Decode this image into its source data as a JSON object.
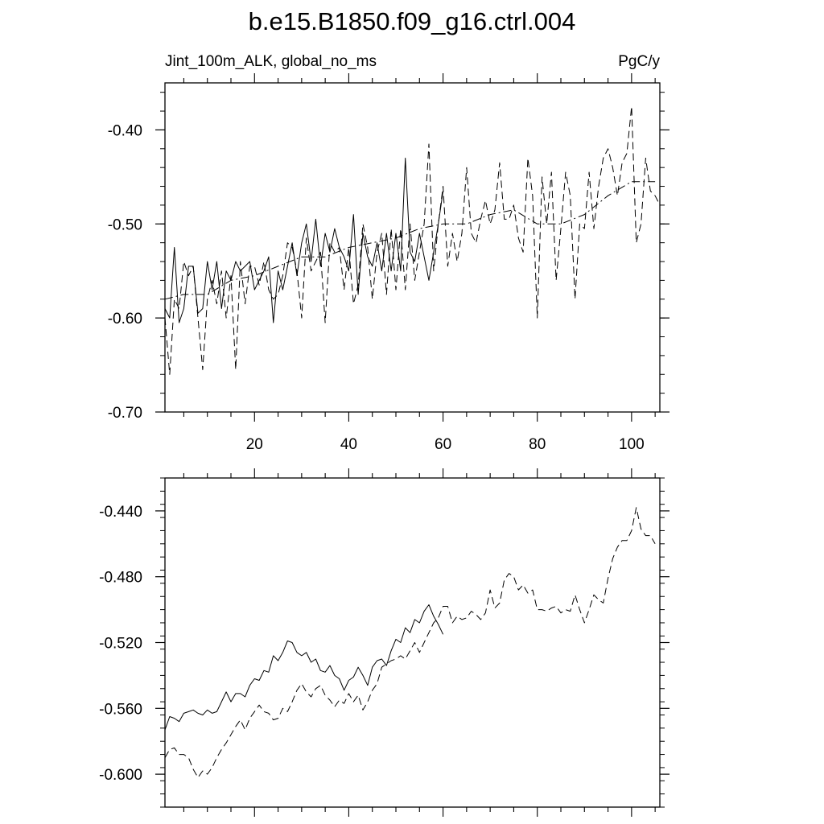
{
  "title": "b.e15.B1850.f09_g16.ctrl.004",
  "chart_data": [
    {
      "type": "line",
      "left_string": "Jint_100m_ALK, global_no_ms",
      "right_string": "PgC/y",
      "xlim": [
        1,
        106
      ],
      "ylim": [
        -0.7,
        -0.35
      ],
      "x_ticks": [
        20,
        40,
        60,
        80,
        100
      ],
      "x_tick_labels": [
        "20",
        "40",
        "60",
        "80",
        "100"
      ],
      "y_ticks": [
        -0.4,
        -0.5,
        -0.6,
        -0.7
      ],
      "y_tick_labels": [
        "-0.40",
        "-0.50",
        "-0.60",
        "-0.70"
      ],
      "grid": false,
      "series": [
        {
          "style": "solid",
          "x": [
            1,
            2,
            3,
            4,
            5,
            6,
            7,
            8,
            9,
            10,
            11,
            12,
            13,
            14,
            15,
            16,
            17,
            18,
            19,
            20,
            21,
            22,
            23,
            24,
            25,
            26,
            27,
            28,
            29,
            30,
            31,
            32,
            33,
            34,
            35,
            36,
            37,
            38,
            39,
            40,
            41,
            42,
            43,
            44,
            45,
            46,
            47,
            48,
            49,
            50,
            51,
            52,
            53,
            54,
            55,
            56,
            57,
            58,
            59,
            60
          ],
          "y": [
            -0.59,
            -0.6,
            -0.525,
            -0.605,
            -0.59,
            -0.545,
            -0.545,
            -0.595,
            -0.59,
            -0.54,
            -0.57,
            -0.54,
            -0.59,
            -0.55,
            -0.56,
            -0.54,
            -0.55,
            -0.545,
            -0.54,
            -0.57,
            -0.56,
            -0.55,
            -0.535,
            -0.605,
            -0.55,
            -0.57,
            -0.545,
            -0.52,
            -0.555,
            -0.52,
            -0.5,
            -0.54,
            -0.495,
            -0.545,
            -0.51,
            -0.53,
            -0.505,
            -0.525,
            -0.535,
            -0.55,
            -0.49,
            -0.575,
            -0.51,
            -0.535,
            -0.545,
            -0.52,
            -0.55,
            -0.51,
            -0.55,
            -0.51,
            -0.55,
            -0.43,
            -0.53,
            -0.54,
            -0.51,
            -0.535,
            -0.56,
            -0.53,
            -0.5,
            -0.465
          ]
        },
        {
          "style": "dashed",
          "x": [
            1,
            2,
            3,
            4,
            5,
            6,
            7,
            8,
            9,
            10,
            11,
            12,
            13,
            14,
            15,
            16,
            17,
            18,
            19,
            20,
            21,
            22,
            23,
            24,
            25,
            26,
            27,
            28,
            29,
            30,
            31,
            32,
            33,
            34,
            35,
            36,
            37,
            38,
            39,
            40,
            41,
            42,
            43,
            44,
            45,
            46,
            47,
            48,
            49,
            50,
            51,
            52,
            53,
            54,
            55,
            56,
            57,
            58,
            59,
            60,
            61,
            62,
            63,
            64,
            65,
            66,
            67,
            68,
            69,
            70,
            71,
            72,
            73,
            74,
            75,
            76,
            77,
            78,
            79,
            80,
            81,
            82,
            83,
            84,
            85,
            86,
            87,
            88,
            89,
            90,
            91,
            92,
            93,
            94,
            95,
            96,
            97,
            98,
            99,
            100,
            101,
            102,
            103,
            104,
            105,
            106
          ],
          "y": [
            -0.6,
            -0.66,
            -0.58,
            -0.59,
            -0.54,
            -0.555,
            -0.545,
            -0.6,
            -0.655,
            -0.58,
            -0.56,
            -0.585,
            -0.55,
            -0.6,
            -0.555,
            -0.655,
            -0.54,
            -0.585,
            -0.545,
            -0.545,
            -0.565,
            -0.54,
            -0.57,
            -0.58,
            -0.575,
            -0.555,
            -0.52,
            -0.525,
            -0.55,
            -0.6,
            -0.515,
            -0.55,
            -0.54,
            -0.53,
            -0.605,
            -0.52,
            -0.53,
            -0.525,
            -0.57,
            -0.525,
            -0.585,
            -0.565,
            -0.5,
            -0.525,
            -0.58,
            -0.53,
            -0.51,
            -0.575,
            -0.505,
            -0.57,
            -0.505,
            -0.57,
            -0.5,
            -0.56,
            -0.53,
            -0.5,
            -0.415,
            -0.55,
            -0.5,
            -0.46,
            -0.545,
            -0.51,
            -0.54,
            -0.51,
            -0.44,
            -0.51,
            -0.52,
            -0.495,
            -0.475,
            -0.5,
            -0.485,
            -0.435,
            -0.495,
            -0.495,
            -0.48,
            -0.515,
            -0.53,
            -0.43,
            -0.47,
            -0.6,
            -0.45,
            -0.5,
            -0.445,
            -0.56,
            -0.505,
            -0.445,
            -0.47,
            -0.58,
            -0.5,
            -0.505,
            -0.445,
            -0.505,
            -0.46,
            -0.43,
            -0.42,
            -0.44,
            -0.47,
            -0.435,
            -0.425,
            -0.375,
            -0.52,
            -0.5,
            -0.43,
            -0.465,
            -0.47,
            -0.48
          ]
        },
        {
          "style": "dash-dot",
          "x": [
            1,
            5,
            10,
            15,
            20,
            25,
            30,
            35,
            40,
            45,
            50,
            55,
            60,
            65,
            70,
            75,
            80,
            85,
            90,
            95,
            100,
            105
          ],
          "y": [
            -0.58,
            -0.575,
            -0.575,
            -0.56,
            -0.555,
            -0.545,
            -0.535,
            -0.535,
            -0.525,
            -0.52,
            -0.515,
            -0.505,
            -0.5,
            -0.5,
            -0.49,
            -0.485,
            -0.5,
            -0.5,
            -0.49,
            -0.47,
            -0.455,
            -0.455
          ]
        }
      ]
    },
    {
      "type": "line",
      "xlim": [
        1,
        106
      ],
      "ylim": [
        -0.62,
        -0.42
      ],
      "y_ticks": [
        -0.44,
        -0.48,
        -0.52,
        -0.56,
        -0.6
      ],
      "y_tick_labels": [
        "-0.440",
        "-0.480",
        "-0.520",
        "-0.560",
        "-0.600"
      ],
      "grid": false,
      "series": [
        {
          "style": "solid",
          "x": [
            1,
            2,
            3,
            4,
            5,
            6,
            7,
            8,
            9,
            10,
            11,
            12,
            13,
            14,
            15,
            16,
            17,
            18,
            19,
            20,
            21,
            22,
            23,
            24,
            25,
            26,
            27,
            28,
            29,
            30,
            31,
            32,
            33,
            34,
            35,
            36,
            37,
            38,
            39,
            40,
            41,
            42,
            43,
            44,
            45,
            46,
            47,
            48,
            49,
            50,
            51,
            52,
            53,
            54,
            55,
            56,
            57,
            58,
            59,
            60
          ],
          "y": [
            -0.573,
            -0.565,
            -0.566,
            -0.568,
            -0.563,
            -0.562,
            -0.561,
            -0.563,
            -0.564,
            -0.561,
            -0.563,
            -0.562,
            -0.556,
            -0.55,
            -0.556,
            -0.551,
            -0.551,
            -0.553,
            -0.546,
            -0.542,
            -0.543,
            -0.537,
            -0.538,
            -0.528,
            -0.531,
            -0.526,
            -0.519,
            -0.52,
            -0.526,
            -0.528,
            -0.526,
            -0.532,
            -0.53,
            -0.537,
            -0.538,
            -0.534,
            -0.54,
            -0.542,
            -0.549,
            -0.543,
            -0.541,
            -0.535,
            -0.54,
            -0.546,
            -0.535,
            -0.531,
            -0.53,
            -0.534,
            -0.525,
            -0.518,
            -0.52,
            -0.511,
            -0.514,
            -0.506,
            -0.508,
            -0.501,
            -0.497,
            -0.504,
            -0.509,
            -0.515
          ]
        },
        {
          "style": "dashed",
          "x": [
            1,
            2,
            3,
            4,
            5,
            6,
            7,
            8,
            9,
            10,
            11,
            12,
            13,
            14,
            15,
            16,
            17,
            18,
            19,
            20,
            21,
            22,
            23,
            24,
            25,
            26,
            27,
            28,
            29,
            30,
            31,
            32,
            33,
            34,
            35,
            36,
            37,
            38,
            39,
            40,
            41,
            42,
            43,
            44,
            45,
            46,
            47,
            48,
            49,
            50,
            51,
            52,
            53,
            54,
            55,
            56,
            57,
            58,
            59,
            60,
            61,
            62,
            63,
            64,
            65,
            66,
            67,
            68,
            69,
            70,
            71,
            72,
            73,
            74,
            75,
            76,
            77,
            78,
            79,
            80,
            81,
            82,
            83,
            84,
            85,
            86,
            87,
            88,
            89,
            90,
            91,
            92,
            93,
            94,
            95,
            96,
            97,
            98,
            99,
            100,
            101,
            102,
            103,
            104,
            105
          ],
          "y": [
            -0.59,
            -0.585,
            -0.584,
            -0.588,
            -0.588,
            -0.59,
            -0.597,
            -0.602,
            -0.598,
            -0.6,
            -0.596,
            -0.59,
            -0.585,
            -0.581,
            -0.576,
            -0.571,
            -0.567,
            -0.573,
            -0.566,
            -0.562,
            -0.558,
            -0.562,
            -0.563,
            -0.567,
            -0.566,
            -0.56,
            -0.562,
            -0.556,
            -0.549,
            -0.545,
            -0.55,
            -0.553,
            -0.548,
            -0.546,
            -0.552,
            -0.555,
            -0.559,
            -0.555,
            -0.557,
            -0.551,
            -0.556,
            -0.552,
            -0.561,
            -0.556,
            -0.549,
            -0.545,
            -0.535,
            -0.533,
            -0.531,
            -0.53,
            -0.528,
            -0.53,
            -0.525,
            -0.52,
            -0.526,
            -0.52,
            -0.514,
            -0.508,
            -0.505,
            -0.498,
            -0.498,
            -0.508,
            -0.504,
            -0.506,
            -0.505,
            -0.501,
            -0.503,
            -0.506,
            -0.502,
            -0.488,
            -0.499,
            -0.496,
            -0.482,
            -0.478,
            -0.48,
            -0.488,
            -0.485,
            -0.49,
            -0.488,
            -0.5,
            -0.5,
            -0.501,
            -0.499,
            -0.498,
            -0.502,
            -0.5,
            -0.501,
            -0.491,
            -0.5,
            -0.508,
            -0.5,
            -0.491,
            -0.494,
            -0.496,
            -0.481,
            -0.469,
            -0.462,
            -0.458,
            -0.458,
            -0.452,
            -0.438,
            -0.451,
            -0.455,
            -0.455,
            -0.46
          ]
        }
      ]
    }
  ]
}
